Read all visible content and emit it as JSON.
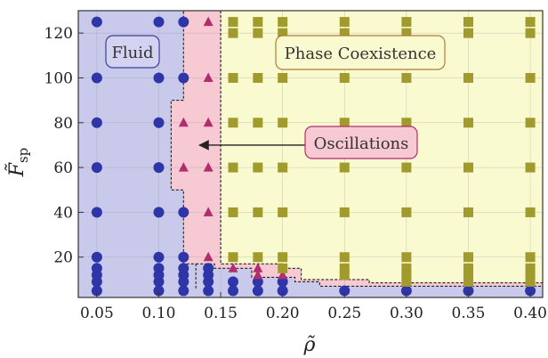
{
  "chart_data": {
    "type": "scatter",
    "title": "",
    "xlabel": "ρ̃",
    "ylabel": "F̃",
    "ylabel_subscript": "sp",
    "xlim": [
      0.035,
      0.41
    ],
    "ylim": [
      2,
      130
    ],
    "xticks": [
      {
        "value": 0.05,
        "label": "0.05"
      },
      {
        "value": 0.1,
        "label": "0.10"
      },
      {
        "value": 0.15,
        "label": "0.15"
      },
      {
        "value": 0.2,
        "label": "0.20"
      },
      {
        "value": 0.25,
        "label": "0.25"
      },
      {
        "value": 0.3,
        "label": "0.30"
      },
      {
        "value": 0.35,
        "label": "0.35"
      },
      {
        "value": 0.4,
        "label": "0.40"
      }
    ],
    "yticks": [
      {
        "value": 20,
        "label": "20"
      },
      {
        "value": 40,
        "label": "40"
      },
      {
        "value": 60,
        "label": "60"
      },
      {
        "value": 80,
        "label": "80"
      },
      {
        "value": 100,
        "label": "100"
      },
      {
        "value": 120,
        "label": "120"
      }
    ],
    "grid": true,
    "colors": {
      "fluid_region": "#c9c9ec",
      "oscillation_region": "#f7c9d2",
      "coexistence_region": "#fafad0",
      "fluid_marker": "#2e35a8",
      "oscillation_marker": "#b02d6e",
      "coexistence_marker": "#a19a2c"
    },
    "boundaries": {
      "oscillation_left": [
        [
          0.13,
          6
        ],
        [
          0.13,
          17
        ],
        [
          0.12,
          17
        ],
        [
          0.12,
          50
        ],
        [
          0.11,
          50
        ],
        [
          0.11,
          90
        ],
        [
          0.12,
          90
        ],
        [
          0.12,
          130
        ]
      ],
      "oscillation_right": [
        [
          0.15,
          130
        ],
        [
          0.15,
          17
        ],
        [
          0.2,
          17
        ],
        [
          0.2,
          15
        ],
        [
          0.215,
          15
        ],
        [
          0.215,
          10
        ],
        [
          0.27,
          10
        ],
        [
          0.27,
          8.5
        ],
        [
          0.41,
          8.5
        ]
      ],
      "coexistence_left": [
        [
          0.15,
          130
        ],
        [
          0.15,
          17
        ],
        [
          0.2,
          17
        ],
        [
          0.2,
          15
        ],
        [
          0.215,
          15
        ],
        [
          0.215,
          10
        ],
        [
          0.27,
          10
        ],
        [
          0.27,
          8.5
        ],
        [
          0.41,
          8.5
        ]
      ],
      "lower_dashed": [
        [
          0.13,
          17
        ],
        [
          0.145,
          17
        ],
        [
          0.145,
          15
        ],
        [
          0.175,
          15
        ],
        [
          0.175,
          11
        ],
        [
          0.21,
          11
        ],
        [
          0.21,
          9
        ],
        [
          0.23,
          9
        ],
        [
          0.23,
          7
        ],
        [
          0.41,
          7
        ]
      ]
    },
    "series": [
      {
        "marker": "circle",
        "points": [
          [
            0.05,
            125
          ],
          [
            0.1,
            125
          ],
          [
            0.12,
            125
          ],
          [
            0.05,
            100
          ],
          [
            0.1,
            100
          ],
          [
            0.12,
            100
          ],
          [
            0.05,
            80
          ],
          [
            0.1,
            80
          ],
          [
            0.05,
            60
          ],
          [
            0.1,
            60
          ],
          [
            0.05,
            40
          ],
          [
            0.1,
            40
          ],
          [
            0.12,
            40
          ],
          [
            0.05,
            20
          ],
          [
            0.1,
            20
          ],
          [
            0.12,
            20
          ],
          [
            0.05,
            15
          ],
          [
            0.1,
            15
          ],
          [
            0.12,
            15
          ],
          [
            0.14,
            15
          ],
          [
            0.05,
            12
          ],
          [
            0.1,
            12
          ],
          [
            0.12,
            12
          ],
          [
            0.14,
            12
          ],
          [
            0.05,
            9
          ],
          [
            0.1,
            9
          ],
          [
            0.12,
            9
          ],
          [
            0.14,
            9
          ],
          [
            0.16,
            9
          ],
          [
            0.18,
            9
          ],
          [
            0.2,
            9
          ],
          [
            0.05,
            5
          ],
          [
            0.1,
            5
          ],
          [
            0.12,
            5
          ],
          [
            0.14,
            5
          ],
          [
            0.16,
            5
          ],
          [
            0.18,
            5
          ],
          [
            0.2,
            5
          ],
          [
            0.25,
            5
          ],
          [
            0.3,
            5
          ],
          [
            0.35,
            5
          ],
          [
            0.4,
            5
          ]
        ]
      },
      {
        "marker": "triangle",
        "points": [
          [
            0.14,
            125
          ],
          [
            0.14,
            100
          ],
          [
            0.12,
            80
          ],
          [
            0.14,
            80
          ],
          [
            0.12,
            60
          ],
          [
            0.14,
            60
          ],
          [
            0.14,
            40
          ],
          [
            0.14,
            20
          ],
          [
            0.16,
            15
          ],
          [
            0.18,
            15
          ],
          [
            0.18,
            12
          ],
          [
            0.2,
            12
          ]
        ]
      },
      {
        "marker": "square",
        "points": [
          [
            0.16,
            125
          ],
          [
            0.18,
            125
          ],
          [
            0.2,
            125
          ],
          [
            0.25,
            125
          ],
          [
            0.3,
            125
          ],
          [
            0.35,
            125
          ],
          [
            0.4,
            125
          ],
          [
            0.16,
            120
          ],
          [
            0.18,
            120
          ],
          [
            0.2,
            120
          ],
          [
            0.25,
            120
          ],
          [
            0.3,
            120
          ],
          [
            0.35,
            120
          ],
          [
            0.4,
            120
          ],
          [
            0.16,
            100
          ],
          [
            0.18,
            100
          ],
          [
            0.2,
            100
          ],
          [
            0.25,
            100
          ],
          [
            0.3,
            100
          ],
          [
            0.35,
            100
          ],
          [
            0.4,
            100
          ],
          [
            0.16,
            80
          ],
          [
            0.18,
            80
          ],
          [
            0.2,
            80
          ],
          [
            0.25,
            80
          ],
          [
            0.3,
            80
          ],
          [
            0.35,
            80
          ],
          [
            0.4,
            80
          ],
          [
            0.16,
            60
          ],
          [
            0.18,
            60
          ],
          [
            0.2,
            60
          ],
          [
            0.25,
            60
          ],
          [
            0.3,
            60
          ],
          [
            0.35,
            60
          ],
          [
            0.4,
            60
          ],
          [
            0.16,
            40
          ],
          [
            0.18,
            40
          ],
          [
            0.2,
            40
          ],
          [
            0.25,
            40
          ],
          [
            0.3,
            40
          ],
          [
            0.35,
            40
          ],
          [
            0.4,
            40
          ],
          [
            0.16,
            20
          ],
          [
            0.18,
            20
          ],
          [
            0.2,
            20
          ],
          [
            0.25,
            20
          ],
          [
            0.3,
            20
          ],
          [
            0.35,
            20
          ],
          [
            0.4,
            20
          ],
          [
            0.2,
            15
          ],
          [
            0.25,
            15
          ],
          [
            0.3,
            15
          ],
          [
            0.35,
            15
          ],
          [
            0.4,
            15
          ],
          [
            0.25,
            12
          ],
          [
            0.3,
            12
          ],
          [
            0.35,
            12
          ],
          [
            0.4,
            12
          ],
          [
            0.3,
            9
          ],
          [
            0.35,
            9
          ],
          [
            0.4,
            9
          ]
        ]
      }
    ],
    "annotations": [
      {
        "name": "fluid",
        "text": "Fluid"
      },
      {
        "name": "coexistence",
        "text": "Phase Coexistence"
      },
      {
        "name": "oscillations",
        "text": "Oscillations",
        "arrow_to": [
          0.13,
          70
        ]
      }
    ]
  }
}
